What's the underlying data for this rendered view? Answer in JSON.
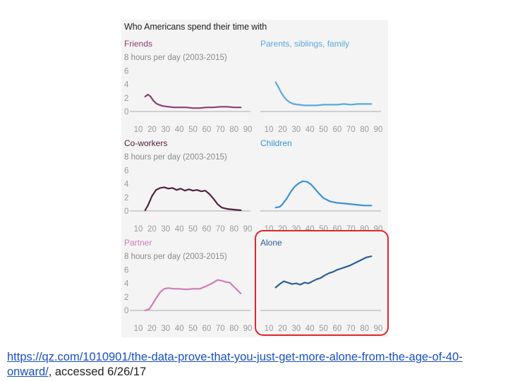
{
  "figure_title": "Who Americans spend their time with",
  "source": {
    "link_text_1": "https://qz.com/1010901/the-data-prove-that-you-just-get-more-alone-from-the-age-of-40-",
    "link_text_2": "onward/",
    "suffix": ", accessed 6/26/17"
  },
  "colors": {
    "friends": "#8b3f6e",
    "family": "#5aa9dd",
    "coworkers": "#54203f",
    "children": "#3a92d4",
    "partner": "#cf7cb6",
    "alone": "#2a5e96",
    "highlight": "#e0262d"
  },
  "chart_data": [
    {
      "type": "line",
      "title": "Friends",
      "ylabel": "8 hours per day (2003-2015)",
      "yticks": [
        0,
        2,
        4,
        6
      ],
      "xticks": [
        10,
        20,
        30,
        40,
        50,
        60,
        70,
        80,
        90
      ],
      "xlim": [
        10,
        90
      ],
      "ylim": [
        0,
        8
      ],
      "x": [
        15,
        17,
        19,
        21,
        23,
        25,
        28,
        32,
        36,
        40,
        45,
        50,
        55,
        60,
        65,
        70,
        75,
        80,
        85
      ],
      "values": [
        2.2,
        2.5,
        2.2,
        1.6,
        1.2,
        1.0,
        0.8,
        0.7,
        0.6,
        0.6,
        0.6,
        0.5,
        0.5,
        0.6,
        0.6,
        0.7,
        0.7,
        0.6,
        0.6
      ]
    },
    {
      "type": "line",
      "title": "Parents, siblings, family",
      "ylabel": "",
      "yticks": [],
      "xticks": [
        10,
        20,
        30,
        40,
        50,
        60,
        70,
        80,
        90
      ],
      "xlim": [
        10,
        90
      ],
      "ylim": [
        0,
        8
      ],
      "x": [
        15,
        17,
        19,
        21,
        23,
        25,
        28,
        32,
        36,
        40,
        45,
        50,
        55,
        60,
        65,
        70,
        75,
        80,
        85
      ],
      "values": [
        4.3,
        3.6,
        2.8,
        2.2,
        1.7,
        1.4,
        1.1,
        1.0,
        0.9,
        0.9,
        0.9,
        1.0,
        1.0,
        1.0,
        1.1,
        1.0,
        1.1,
        1.1,
        1.1
      ]
    },
    {
      "type": "line",
      "title": "Co-workers",
      "ylabel": "8 hours per day (2003-2015)",
      "yticks": [
        0,
        2,
        4,
        6
      ],
      "xticks": [
        10,
        20,
        30,
        40,
        50,
        60,
        70,
        80,
        90
      ],
      "xlim": [
        10,
        90
      ],
      "ylim": [
        0,
        8
      ],
      "x": [
        15,
        17,
        20,
        23,
        26,
        29,
        32,
        35,
        38,
        41,
        44,
        47,
        50,
        53,
        56,
        59,
        62,
        65,
        68,
        71,
        75,
        80,
        85
      ],
      "values": [
        0.1,
        0.8,
        2.2,
        3.1,
        3.4,
        3.5,
        3.3,
        3.4,
        3.1,
        3.3,
        3.0,
        3.2,
        3.0,
        3.1,
        2.9,
        3.0,
        2.5,
        1.8,
        1.0,
        0.5,
        0.3,
        0.2,
        0.1
      ]
    },
    {
      "type": "line",
      "title": "Children",
      "ylabel": "",
      "yticks": [],
      "xticks": [
        10,
        20,
        30,
        40,
        50,
        60,
        70,
        80,
        90
      ],
      "xlim": [
        10,
        90
      ],
      "ylim": [
        0,
        8
      ],
      "x": [
        15,
        18,
        20,
        23,
        26,
        29,
        32,
        35,
        38,
        41,
        44,
        47,
        50,
        55,
        60,
        65,
        70,
        75,
        80,
        85
      ],
      "values": [
        0.5,
        0.6,
        1.0,
        1.8,
        2.8,
        3.6,
        4.1,
        4.4,
        4.3,
        3.9,
        3.2,
        2.5,
        1.9,
        1.4,
        1.2,
        1.1,
        1.0,
        0.9,
        0.8,
        0.8
      ]
    },
    {
      "type": "line",
      "title": "Partner",
      "ylabel": "8 hours per day (2003-2015)",
      "yticks": [
        0,
        2,
        4,
        6
      ],
      "xticks": [
        10,
        20,
        30,
        40,
        50,
        60,
        70,
        80,
        90
      ],
      "xlim": [
        10,
        90
      ],
      "ylim": [
        0,
        8
      ],
      "x": [
        15,
        18,
        20,
        23,
        26,
        29,
        32,
        36,
        40,
        45,
        50,
        55,
        60,
        64,
        68,
        71,
        74,
        77,
        80,
        85
      ],
      "values": [
        0.0,
        0.2,
        0.8,
        1.8,
        2.7,
        3.2,
        3.3,
        3.2,
        3.2,
        3.1,
        3.2,
        3.2,
        3.6,
        4.0,
        4.5,
        4.4,
        4.2,
        4.1,
        3.5,
        2.5
      ]
    },
    {
      "type": "line",
      "title": "Alone",
      "ylabel": "",
      "yticks": [],
      "xticks": [
        10,
        20,
        30,
        40,
        50,
        60,
        70,
        80,
        90
      ],
      "xlim": [
        10,
        90
      ],
      "ylim": [
        0,
        8
      ],
      "x": [
        15,
        18,
        21,
        24,
        27,
        30,
        33,
        36,
        39,
        42,
        45,
        48,
        51,
        54,
        57,
        60,
        63,
        66,
        69,
        72,
        75,
        78,
        81,
        85
      ],
      "values": [
        3.4,
        3.9,
        4.3,
        4.1,
        3.9,
        4.0,
        3.8,
        4.1,
        4.0,
        4.3,
        4.6,
        4.8,
        5.2,
        5.5,
        5.7,
        6.0,
        6.2,
        6.4,
        6.6,
        6.9,
        7.2,
        7.5,
        7.8,
        8.0
      ]
    }
  ]
}
